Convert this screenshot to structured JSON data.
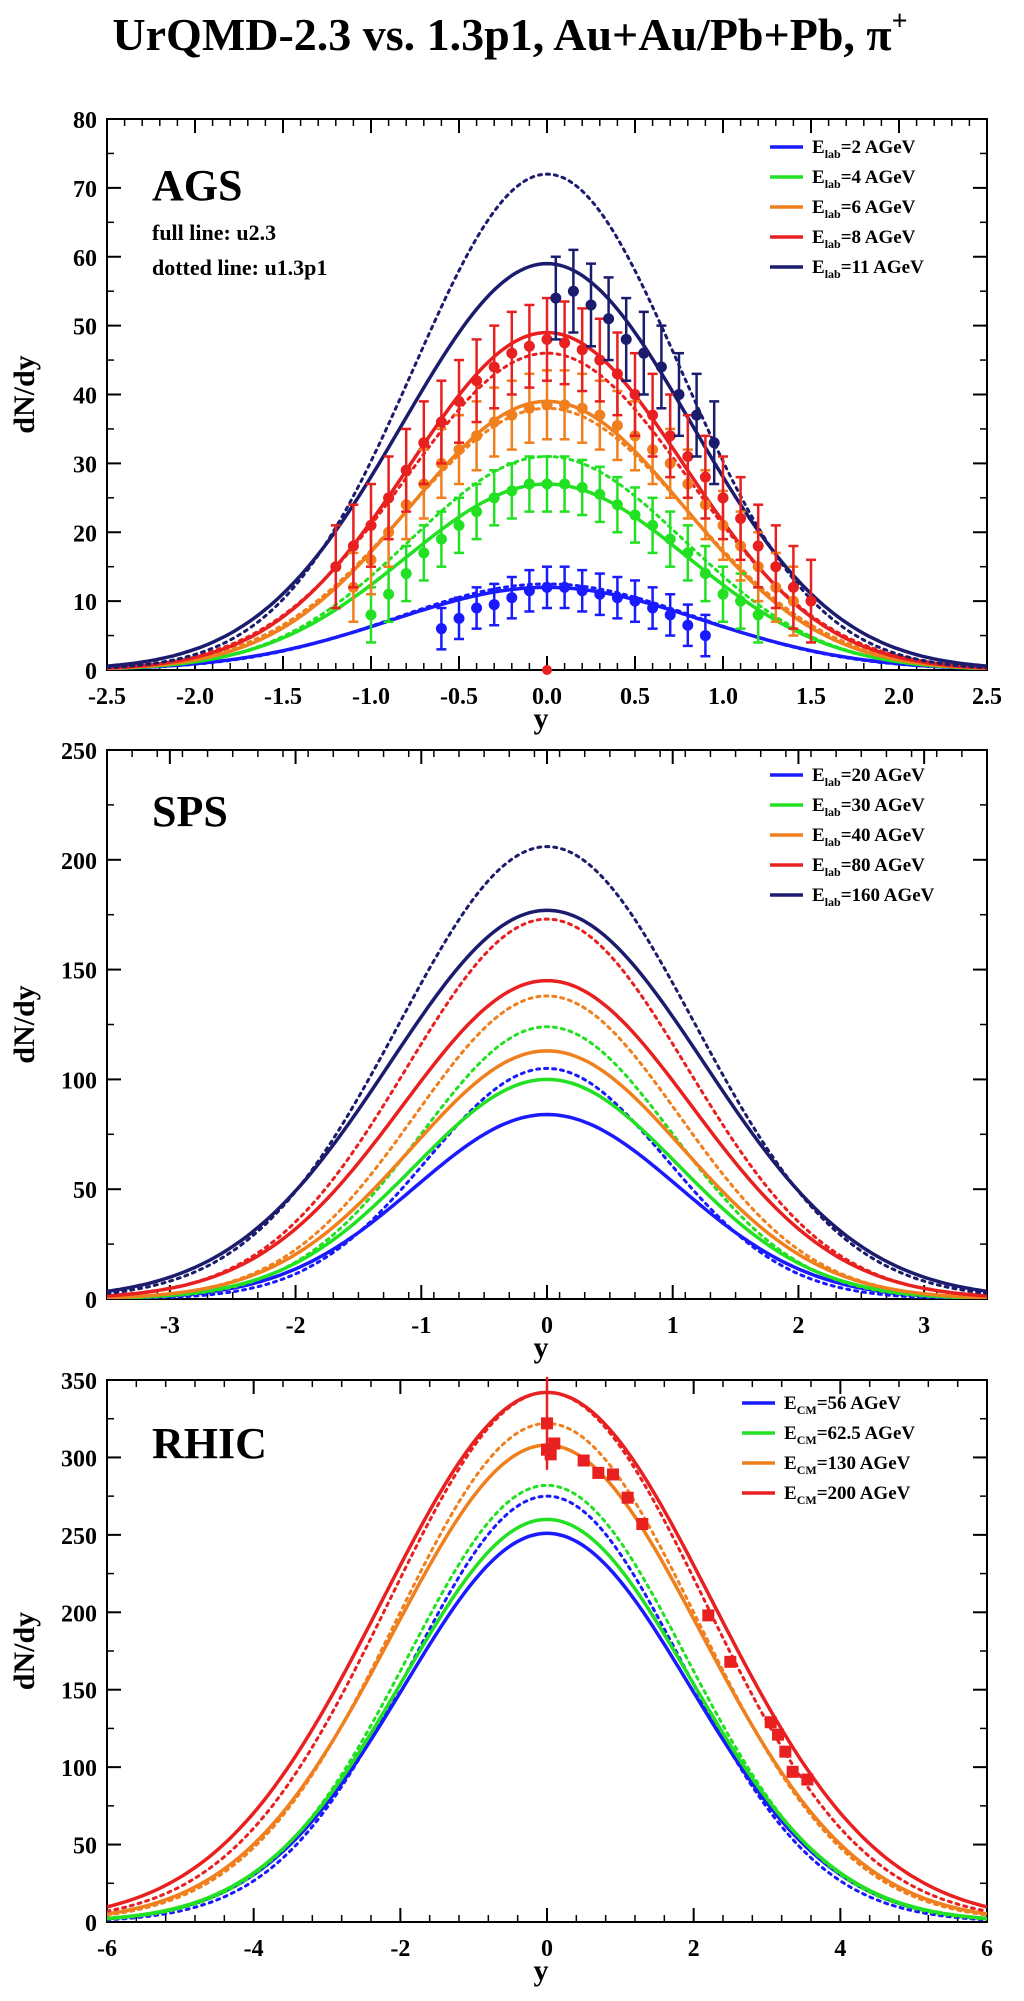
{
  "title": {
    "main": "UrQMD-2.3 vs. 1.3p1, Au+Au/Pb+Pb, π",
    "superscript": "+"
  },
  "chart_data": [
    {
      "type": "line",
      "name": "AGS",
      "panel_label": "AGS",
      "notes": [
        "full line: u2.3",
        "dotted line: u1.3p1"
      ],
      "xlabel": "y",
      "ylabel": "dN/dy",
      "xlim": [
        -2.5,
        2.5
      ],
      "ylim": [
        0,
        80
      ],
      "xticks": [
        -2.5,
        -2.0,
        -1.5,
        -1.0,
        -0.5,
        0.0,
        0.5,
        1.0,
        1.5,
        2.0,
        2.5
      ],
      "xticklabels": [
        "-2.5",
        "-2.0",
        "-1.5",
        "-1.0",
        "-0.5",
        "0.0",
        "0.5",
        "1.0",
        "1.5",
        "2.0",
        "2.5"
      ],
      "yticks": [
        0,
        10,
        20,
        30,
        40,
        50,
        60,
        70,
        80
      ],
      "yticklabels": [
        "0",
        "10",
        "20",
        "30",
        "40",
        "50",
        "60",
        "70",
        "80"
      ],
      "series": [
        {
          "legend_main": "E",
          "legend_sub": "lab",
          "legend_rest": "=2 AGeV",
          "color": "#1a1aff",
          "full_peak": 12,
          "full_sigma": 0.88,
          "dotted_peak": 12.5,
          "dotted_sigma": 0.86,
          "points": [
            [
              -0.6,
              6
            ],
            [
              -0.5,
              7.5
            ],
            [
              -0.4,
              9
            ],
            [
              -0.3,
              9.5
            ],
            [
              -0.2,
              10.5
            ],
            [
              -0.1,
              11.5
            ],
            [
              0.0,
              12
            ],
            [
              0.1,
              12
            ],
            [
              0.2,
              11.5
            ],
            [
              0.3,
              11
            ],
            [
              0.4,
              10.5
            ],
            [
              0.5,
              10
            ],
            [
              0.6,
              9
            ],
            [
              0.7,
              8
            ],
            [
              0.8,
              6.5
            ],
            [
              0.9,
              5
            ]
          ],
          "errors": 3
        },
        {
          "legend_main": "E",
          "legend_sub": "lab",
          "legend_rest": "=4 AGeV",
          "color": "#22e022",
          "full_peak": 27,
          "full_sigma": 0.8,
          "dotted_peak": 31,
          "dotted_sigma": 0.78,
          "points": [
            [
              -1.0,
              8
            ],
            [
              -0.9,
              11
            ],
            [
              -0.8,
              14
            ],
            [
              -0.7,
              17
            ],
            [
              -0.6,
              19
            ],
            [
              -0.5,
              21
            ],
            [
              -0.4,
              23
            ],
            [
              -0.3,
              25
            ],
            [
              -0.2,
              26
            ],
            [
              -0.1,
              27
            ],
            [
              0.0,
              27
            ],
            [
              0.1,
              27
            ],
            [
              0.2,
              26.5
            ],
            [
              0.3,
              25.5
            ],
            [
              0.4,
              24
            ],
            [
              0.5,
              22.5
            ],
            [
              0.6,
              21
            ],
            [
              0.7,
              19
            ],
            [
              0.8,
              17
            ],
            [
              0.9,
              14
            ],
            [
              1.0,
              11
            ],
            [
              1.1,
              10
            ],
            [
              1.2,
              8
            ]
          ],
          "errors": 4
        },
        {
          "legend_main": "E",
          "legend_sub": "lab",
          "legend_rest": "=6 AGeV",
          "color": "#f07f1e",
          "full_peak": 39,
          "full_sigma": 0.78,
          "dotted_peak": 38,
          "dotted_sigma": 0.8,
          "points": [
            [
              -1.1,
              12
            ],
            [
              -1.0,
              16
            ],
            [
              -0.9,
              20
            ],
            [
              -0.8,
              24
            ],
            [
              -0.7,
              27
            ],
            [
              -0.6,
              30
            ],
            [
              -0.5,
              32
            ],
            [
              -0.4,
              34
            ],
            [
              -0.3,
              36
            ],
            [
              -0.2,
              37
            ],
            [
              -0.1,
              38
            ],
            [
              0.0,
              38.5
            ],
            [
              0.1,
              38.5
            ],
            [
              0.2,
              38
            ],
            [
              0.3,
              37
            ],
            [
              0.4,
              35.5
            ],
            [
              0.5,
              34
            ],
            [
              0.6,
              32
            ],
            [
              0.7,
              30
            ],
            [
              0.8,
              27
            ],
            [
              0.9,
              24
            ],
            [
              1.0,
              21
            ],
            [
              1.1,
              18
            ],
            [
              1.2,
              15
            ],
            [
              1.3,
              12
            ],
            [
              1.4,
              10
            ]
          ],
          "errors": 5
        },
        {
          "legend_main": "E",
          "legend_sub": "lab",
          "legend_rest": "=8 AGeV",
          "color": "#e82020",
          "full_peak": 49,
          "full_sigma": 0.78,
          "dotted_peak": 46,
          "dotted_sigma": 0.8,
          "points": [
            [
              -1.2,
              15
            ],
            [
              -1.1,
              18
            ],
            [
              -1.0,
              21
            ],
            [
              -0.9,
              25
            ],
            [
              -0.8,
              29
            ],
            [
              -0.7,
              33
            ],
            [
              -0.6,
              36
            ],
            [
              -0.5,
              39
            ],
            [
              -0.4,
              42
            ],
            [
              -0.3,
              44
            ],
            [
              -0.2,
              46
            ],
            [
              -0.1,
              47
            ],
            [
              0.0,
              48
            ],
            [
              0.1,
              47.5
            ],
            [
              0.2,
              46.5
            ],
            [
              0.3,
              45
            ],
            [
              0.4,
              43
            ],
            [
              0.5,
              40
            ],
            [
              0.6,
              37
            ],
            [
              0.7,
              34
            ],
            [
              0.8,
              31
            ],
            [
              0.9,
              28
            ],
            [
              1.0,
              25
            ],
            [
              1.1,
              22
            ],
            [
              1.2,
              18
            ],
            [
              1.3,
              15
            ],
            [
              1.4,
              12
            ],
            [
              1.5,
              10
            ]
          ],
          "errors": 6
        },
        {
          "legend_main": "E",
          "legend_sub": "lab",
          "legend_rest": "=11 AGeV",
          "color": "#1c1c6e",
          "full_peak": 59,
          "full_sigma": 0.82,
          "dotted_peak": 72,
          "dotted_sigma": 0.76,
          "points": [
            [
              0.05,
              54
            ],
            [
              0.15,
              55
            ],
            [
              0.25,
              53
            ],
            [
              0.35,
              51
            ],
            [
              0.45,
              48
            ],
            [
              0.55,
              46
            ],
            [
              0.65,
              44
            ],
            [
              0.75,
              40
            ],
            [
              0.85,
              37
            ],
            [
              0.95,
              33
            ]
          ],
          "errors": 6
        }
      ],
      "extra_markers": [
        [
          0.0,
          0
        ]
      ]
    },
    {
      "type": "line",
      "name": "SPS",
      "panel_label": "SPS",
      "xlabel": "y",
      "ylabel": "dN/dy",
      "xlim": [
        -3.5,
        3.5
      ],
      "ylim": [
        0,
        250
      ],
      "xticks": [
        -3,
        -2,
        -1,
        0,
        1,
        2,
        3
      ],
      "xticklabels": [
        "-3",
        "-2",
        "-1",
        "0",
        "1",
        "2",
        "3"
      ],
      "yticks": [
        0,
        50,
        100,
        150,
        200,
        250
      ],
      "yticklabels": [
        "0",
        "50",
        "100",
        "150",
        "200",
        "250"
      ],
      "series": [
        {
          "legend_main": "E",
          "legend_sub": "lab",
          "legend_rest": "=20 AGeV",
          "color": "#1a1aff",
          "full_peak": 84,
          "full_sigma": 1.05,
          "dotted_peak": 105,
          "dotted_sigma": 0.95
        },
        {
          "legend_main": "E",
          "legend_sub": "lab",
          "legend_rest": "=30 AGeV",
          "color": "#22e022",
          "full_peak": 100,
          "full_sigma": 1.05,
          "dotted_peak": 124,
          "dotted_sigma": 1.0
        },
        {
          "legend_main": "E",
          "legend_sub": "lab",
          "legend_rest": "=40 AGeV",
          "color": "#f07f1e",
          "full_peak": 113,
          "full_sigma": 1.08,
          "dotted_peak": 138,
          "dotted_sigma": 1.05
        },
        {
          "legend_main": "E",
          "legend_sub": "lab",
          "legend_rest": "=80 AGeV",
          "color": "#e82020",
          "full_peak": 145,
          "full_sigma": 1.15,
          "dotted_peak": 173,
          "dotted_sigma": 1.12
        },
        {
          "legend_main": "E",
          "legend_sub": "lab",
          "legend_rest": "=160 AGeV",
          "color": "#1c1c6e",
          "full_peak": 177,
          "full_sigma": 1.25,
          "dotted_peak": 206,
          "dotted_sigma": 1.18
        }
      ]
    },
    {
      "type": "line",
      "name": "RHIC",
      "panel_label": "RHIC",
      "xlabel": "y",
      "ylabel": "dN/dy",
      "xlim": [
        -6,
        6
      ],
      "ylim": [
        0,
        350
      ],
      "xticks": [
        -6,
        -4,
        -2,
        0,
        2,
        4,
        6
      ],
      "xticklabels": [
        "-6",
        "-4",
        "-2",
        "0",
        "2",
        "4",
        "6"
      ],
      "yticks": [
        0,
        50,
        100,
        150,
        200,
        250,
        300,
        350
      ],
      "yticklabels": [
        "0",
        "50",
        "100",
        "150",
        "200",
        "250",
        "300",
        "350"
      ],
      "series": [
        {
          "legend_main": "E",
          "legend_sub": "CM",
          "legend_rest": "=56 AGeV",
          "color": "#1a1aff",
          "full_peak": 251,
          "full_sigma": 1.95,
          "dotted_peak": 275,
          "dotted_sigma": 1.85
        },
        {
          "legend_main": "E",
          "legend_sub": "CM",
          "legend_rest": "=62.5 AGeV",
          "color": "#22e022",
          "full_peak": 260,
          "full_sigma": 1.95,
          "dotted_peak": 282,
          "dotted_sigma": 1.9
        },
        {
          "legend_main": "E",
          "legend_sub": "CM",
          "legend_rest": "=130 AGeV",
          "color": "#f07f1e",
          "full_peak": 308,
          "full_sigma": 2.1,
          "dotted_peak": 322,
          "dotted_sigma": 2.05
        },
        {
          "legend_main": "E",
          "legend_sub": "CM",
          "legend_rest": "=200 AGeV",
          "color": "#e82020",
          "full_peak": 342,
          "full_sigma": 2.25,
          "dotted_peak": 342,
          "dotted_sigma": 2.15
        }
      ],
      "data_series": {
        "color": "#e82020",
        "points": [
          [
            0.0,
            305
          ],
          [
            0.0,
            322
          ],
          [
            0.05,
            302
          ],
          [
            0.1,
            309
          ],
          [
            0.5,
            298
          ],
          [
            0.7,
            290
          ],
          [
            0.9,
            289
          ],
          [
            1.1,
            274
          ],
          [
            1.3,
            257
          ],
          [
            2.2,
            198
          ],
          [
            2.5,
            168
          ],
          [
            3.05,
            129
          ],
          [
            3.15,
            121
          ],
          [
            3.25,
            110
          ],
          [
            3.35,
            97
          ],
          [
            3.55,
            92
          ]
        ],
        "error_point": [
          0.0,
          322,
          30
        ]
      }
    }
  ]
}
